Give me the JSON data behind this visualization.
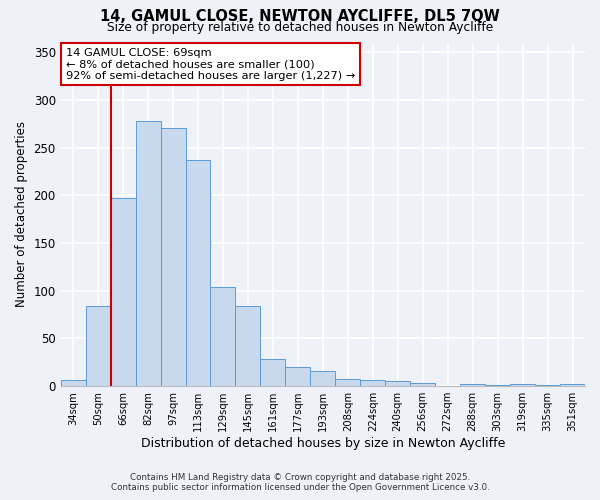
{
  "title": "14, GAMUL CLOSE, NEWTON AYCLIFFE, DL5 7QW",
  "subtitle": "Size of property relative to detached houses in Newton Aycliffe",
  "xlabel": "Distribution of detached houses by size in Newton Aycliffe",
  "ylabel": "Number of detached properties",
  "bar_labels": [
    "34sqm",
    "50sqm",
    "66sqm",
    "82sqm",
    "97sqm",
    "113sqm",
    "129sqm",
    "145sqm",
    "161sqm",
    "177sqm",
    "193sqm",
    "208sqm",
    "224sqm",
    "240sqm",
    "256sqm",
    "272sqm",
    "288sqm",
    "303sqm",
    "319sqm",
    "335sqm",
    "351sqm"
  ],
  "bar_values": [
    6,
    84,
    197,
    278,
    270,
    237,
    104,
    84,
    29,
    20,
    16,
    8,
    7,
    5,
    3,
    0,
    2,
    1,
    2,
    1,
    2
  ],
  "bar_color": "#c9d9ed",
  "bar_edge_color": "#5b9bd5",
  "vline_x": 2.0,
  "vline_color": "#cc0000",
  "annotation_title": "14 GAMUL CLOSE: 69sqm",
  "annotation_line1": "← 8% of detached houses are smaller (100)",
  "annotation_line2": "92% of semi-detached houses are larger (1,227) →",
  "annotation_box_color": "#ffffff",
  "annotation_box_edge_color": "#cc0000",
  "ylim": [
    0,
    360
  ],
  "yticks": [
    0,
    50,
    100,
    150,
    200,
    250,
    300,
    350
  ],
  "background_color": "#eef2f8",
  "grid_color": "#ffffff",
  "footnote1": "Contains HM Land Registry data © Crown copyright and database right 2025.",
  "footnote2": "Contains public sector information licensed under the Open Government Licence v3.0."
}
